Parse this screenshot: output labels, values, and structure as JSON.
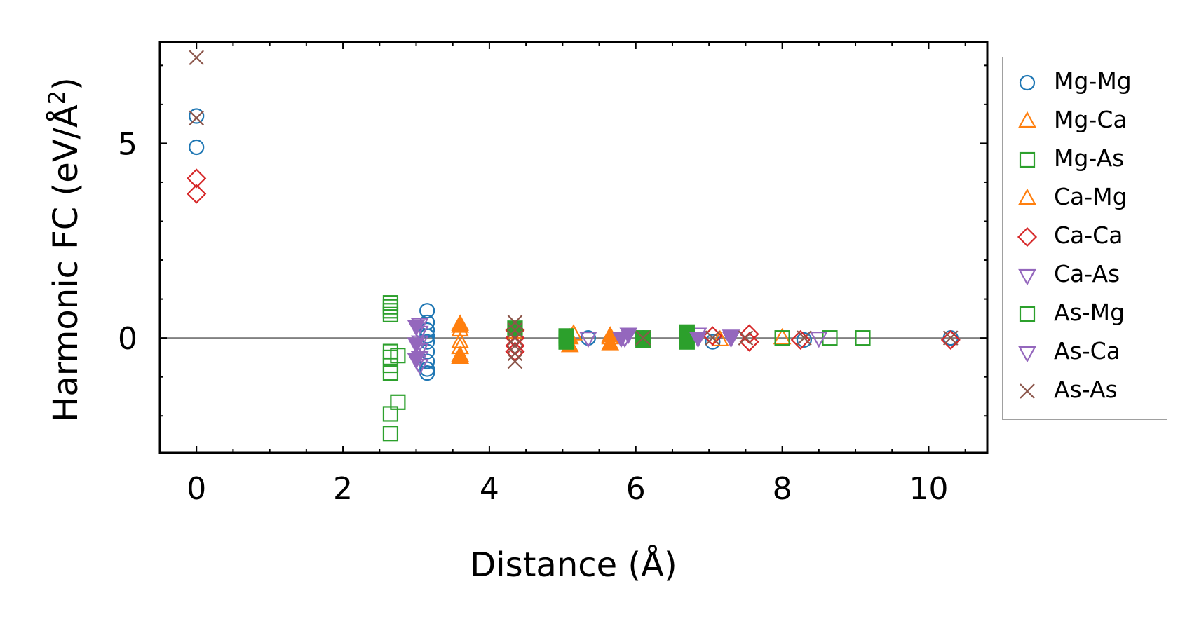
{
  "chart_data": {
    "type": "scatter",
    "xlabel": "Distance (Å)",
    "ylabel_main": "Harmonic FC (eV/Å",
    "ylabel_sup": "2",
    "ylabel_close": ")",
    "xlim": [
      -0.5,
      10.8
    ],
    "ylim": [
      -2.95,
      7.6
    ],
    "xticks": [
      0,
      2,
      4,
      6,
      8,
      10
    ],
    "yticks": [
      0,
      5
    ],
    "zero_line": true,
    "legend_position": "right-outside",
    "series": [
      {
        "name": "Mg-Mg",
        "marker": "circle",
        "color": "#1f77b4",
        "filled": false,
        "points": [
          [
            0,
            5.7
          ],
          [
            0,
            4.9
          ],
          [
            3.15,
            0.7
          ],
          [
            3.15,
            0.4
          ],
          [
            3.15,
            0.2
          ],
          [
            3.15,
            0.05
          ],
          [
            3.15,
            -0.1
          ],
          [
            3.15,
            -0.35
          ],
          [
            3.15,
            -0.6
          ],
          [
            3.15,
            -0.8
          ],
          [
            3.15,
            -0.9
          ],
          [
            5.35,
            0.0
          ],
          [
            6.1,
            0.0
          ],
          [
            7.05,
            -0.1
          ],
          [
            8.3,
            -0.05
          ],
          [
            10.3,
            0.0
          ]
        ]
      },
      {
        "name": "Mg-Ca",
        "marker": "triangle-up",
        "color": "#ff7f0e",
        "filled": false,
        "points": [
          [
            3.6,
            0.35
          ],
          [
            3.6,
            0.2
          ],
          [
            3.6,
            -0.1
          ],
          [
            3.6,
            -0.25
          ],
          [
            3.6,
            -0.5
          ],
          [
            4.35,
            0.15
          ],
          [
            5.15,
            0.1
          ],
          [
            5.65,
            0.0
          ],
          [
            7.15,
            -0.05
          ],
          [
            8.0,
            0.0
          ]
        ]
      },
      {
        "name": "Mg-As",
        "marker": "square",
        "color": "#2ca02c",
        "filled": false,
        "points": [
          [
            2.65,
            0.9
          ],
          [
            2.65,
            0.8
          ],
          [
            2.65,
            0.7
          ],
          [
            2.65,
            0.6
          ],
          [
            2.65,
            -0.35
          ],
          [
            2.65,
            -0.5
          ],
          [
            2.65,
            -0.7
          ],
          [
            2.65,
            -0.9
          ],
          [
            2.75,
            -0.45
          ],
          [
            2.75,
            -1.65
          ],
          [
            2.65,
            -1.95
          ],
          [
            2.65,
            -2.45
          ],
          [
            5.05,
            0.0
          ],
          [
            6.1,
            0.0
          ],
          [
            6.7,
            0.05
          ],
          [
            8.0,
            0.0
          ],
          [
            8.65,
            0.0
          ],
          [
            9.1,
            0.0
          ]
        ]
      },
      {
        "name": "Ca-Mg",
        "marker": "triangle-up",
        "color": "#ff7f0e",
        "filled": true,
        "points": [
          [
            3.6,
            0.3
          ],
          [
            3.6,
            -0.45
          ],
          [
            5.1,
            0.0
          ],
          [
            5.1,
            -0.2
          ],
          [
            5.65,
            -0.15
          ],
          [
            5.65,
            0.05
          ]
        ]
      },
      {
        "name": "Ca-Ca",
        "marker": "diamond",
        "color": "#d62728",
        "filled": false,
        "points": [
          [
            0,
            4.1
          ],
          [
            0,
            3.7
          ],
          [
            4.35,
            0.2
          ],
          [
            4.35,
            0.0
          ],
          [
            4.35,
            -0.2
          ],
          [
            4.35,
            -0.35
          ],
          [
            7.05,
            0.05
          ],
          [
            7.55,
            0.1
          ],
          [
            7.55,
            -0.1
          ],
          [
            8.25,
            -0.05
          ],
          [
            10.3,
            -0.05
          ]
        ]
      },
      {
        "name": "Ca-As",
        "marker": "triangle-down",
        "color": "#9467bd",
        "filled": false,
        "points": [
          [
            3.05,
            0.35
          ],
          [
            3.05,
            0.15
          ],
          [
            3.05,
            -0.1
          ],
          [
            3.05,
            -0.3
          ],
          [
            3.05,
            -0.5
          ],
          [
            3.05,
            -0.7
          ],
          [
            5.35,
            0.0
          ],
          [
            5.85,
            0.0
          ],
          [
            6.85,
            0.1
          ],
          [
            7.3,
            0.0
          ],
          [
            8.5,
            0.0
          ]
        ]
      },
      {
        "name": "As-Mg",
        "marker": "square",
        "color": "#2ca02c",
        "filled": true,
        "points": [
          [
            4.35,
            0.25
          ],
          [
            5.05,
            0.05
          ],
          [
            5.05,
            -0.1
          ],
          [
            6.1,
            -0.05
          ],
          [
            6.7,
            0.15
          ],
          [
            6.7,
            -0.1
          ]
        ]
      },
      {
        "name": "As-Ca",
        "marker": "triangle-down",
        "color": "#9467bd",
        "filled": true,
        "points": [
          [
            3.0,
            0.3
          ],
          [
            3.0,
            -0.15
          ],
          [
            3.0,
            -0.55
          ],
          [
            5.8,
            0.0
          ],
          [
            5.9,
            0.1
          ],
          [
            6.85,
            0.0
          ],
          [
            7.3,
            0.05
          ]
        ]
      },
      {
        "name": "As-As",
        "marker": "x",
        "color": "#8c564b",
        "filled": false,
        "points": [
          [
            0,
            7.2
          ],
          [
            0,
            5.65
          ],
          [
            4.35,
            0.4
          ],
          [
            4.35,
            0.2
          ],
          [
            4.35,
            0.0
          ],
          [
            4.35,
            -0.2
          ],
          [
            4.35,
            -0.4
          ],
          [
            4.35,
            -0.6
          ],
          [
            6.1,
            0.0
          ],
          [
            7.05,
            0.0
          ],
          [
            7.5,
            0.0
          ],
          [
            8.3,
            0.0
          ],
          [
            10.3,
            0.0
          ]
        ]
      }
    ]
  }
}
